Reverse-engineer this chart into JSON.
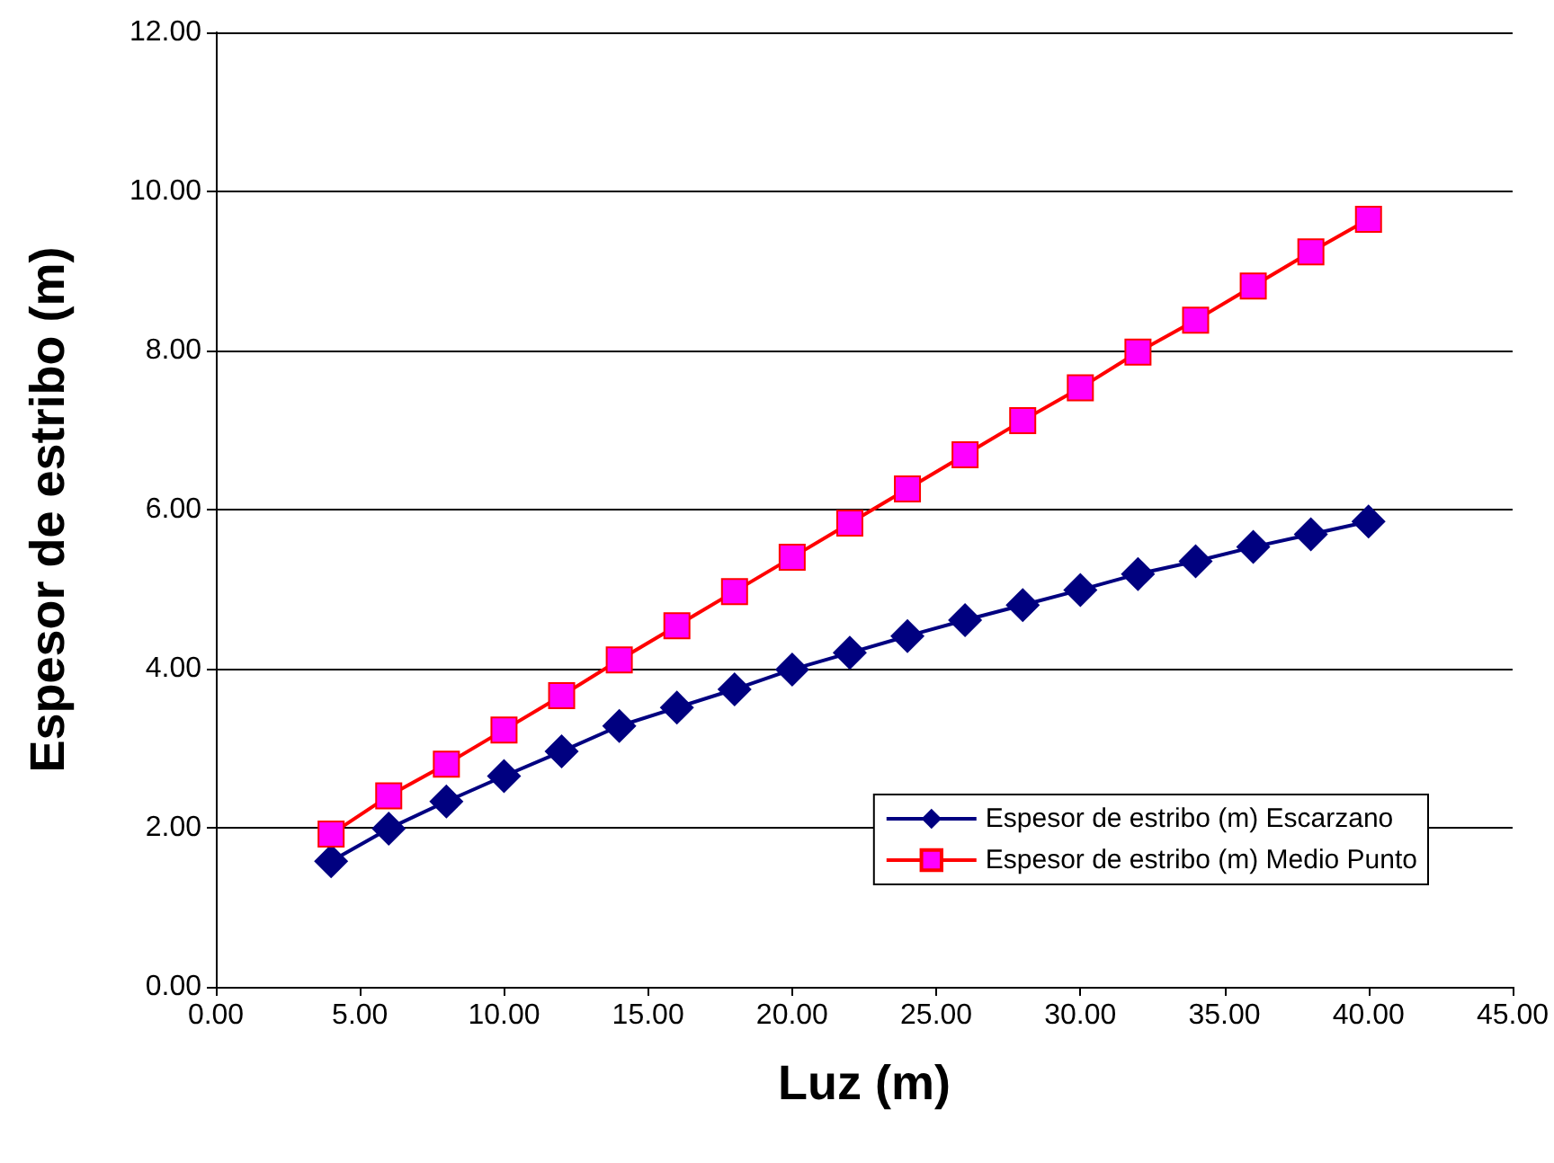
{
  "chart_data": {
    "type": "line",
    "xlabel": "Luz (m)",
    "ylabel": "Espesor de estribo (m)",
    "x": [
      4,
      6,
      8,
      10,
      12,
      14,
      16,
      18,
      20,
      22,
      24,
      26,
      28,
      30,
      32,
      34,
      36,
      38,
      40
    ],
    "series": [
      {
        "name": "Espesor de estribo (m) Escarzano",
        "color": "#000080",
        "marker": "diamond",
        "values": [
          1.58,
          1.99,
          2.33,
          2.65,
          2.96,
          3.28,
          3.51,
          3.74,
          3.99,
          4.2,
          4.41,
          4.61,
          4.8,
          4.99,
          5.19,
          5.35,
          5.53,
          5.69,
          5.85
        ]
      },
      {
        "name": "Espesor de estribo (m) Medio Punto",
        "color": "#ff0000",
        "marker": "square",
        "values": [
          1.92,
          2.4,
          2.8,
          3.23,
          3.66,
          4.11,
          4.54,
          4.97,
          5.4,
          5.83,
          6.26,
          6.69,
          7.12,
          7.53,
          7.98,
          8.38,
          8.81,
          9.24,
          9.65
        ]
      }
    ],
    "xlim": [
      0,
      45
    ],
    "xticks": [
      {
        "value": 0,
        "label": "0.00"
      },
      {
        "value": 5,
        "label": "5.00"
      },
      {
        "value": 10,
        "label": "10.00"
      },
      {
        "value": 15,
        "label": "15.00"
      },
      {
        "value": 20,
        "label": "20.00"
      },
      {
        "value": 25,
        "label": "25.00"
      },
      {
        "value": 30,
        "label": "30.00"
      },
      {
        "value": 35,
        "label": "35.00"
      },
      {
        "value": 40,
        "label": "40.00"
      },
      {
        "value": 45,
        "label": "45.00"
      }
    ],
    "ylim": [
      0,
      12
    ],
    "yticks": [
      {
        "value": 0,
        "label": "0.00"
      },
      {
        "value": 2,
        "label": "2.00"
      },
      {
        "value": 4,
        "label": "4.00"
      },
      {
        "value": 6,
        "label": "6.00"
      },
      {
        "value": 8,
        "label": "8.00"
      },
      {
        "value": 10,
        "label": "10.00"
      },
      {
        "value": 12,
        "label": "12.00"
      }
    ],
    "grid": "y",
    "legend": "bottom right",
    "line_style": "solid"
  }
}
